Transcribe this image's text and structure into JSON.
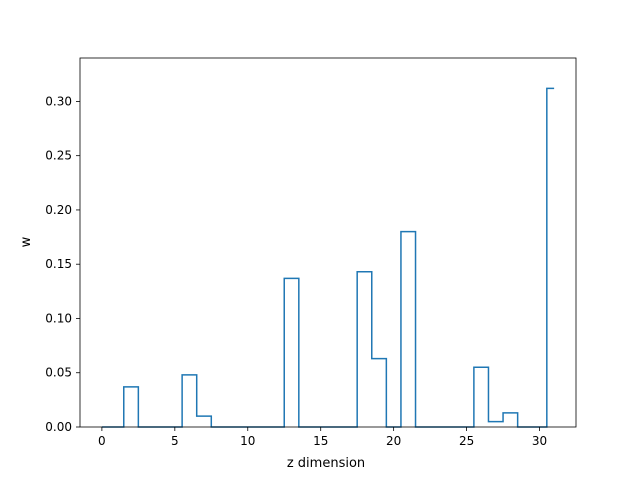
{
  "chart_data": {
    "type": "line",
    "drawstyle": "steps-mid",
    "title": "",
    "xlabel": "z dimension",
    "ylabel": "w",
    "xlim": [
      -1.5,
      32.5
    ],
    "ylim": [
      0.0,
      0.34
    ],
    "xticks": [
      0,
      5,
      10,
      15,
      20,
      25,
      30
    ],
    "xtick_labels": [
      "0",
      "5",
      "10",
      "15",
      "20",
      "25",
      "30"
    ],
    "yticks": [
      0.0,
      0.05,
      0.1,
      0.15,
      0.2,
      0.25,
      0.3
    ],
    "ytick_labels": [
      "0.00",
      "0.05",
      "0.10",
      "0.15",
      "0.20",
      "0.25",
      "0.30"
    ],
    "grid": false,
    "colors": {
      "line": "#1f77b4",
      "axes": "#000000",
      "background": "#ffffff"
    },
    "series": [
      {
        "x": [
          0,
          1,
          2,
          3,
          4,
          5,
          6,
          7,
          8,
          9,
          10,
          11,
          12,
          13,
          14,
          15,
          16,
          17,
          18,
          19,
          20,
          21,
          22,
          23,
          24,
          25,
          26,
          27,
          28,
          29,
          30,
          31
        ],
        "values": [
          0.0,
          0.0,
          0.037,
          0.0,
          0.0,
          0.0,
          0.048,
          0.01,
          0.0,
          0.0,
          0.0,
          0.0,
          0.0,
          0.137,
          0.0,
          0.0,
          0.0,
          0.0,
          0.143,
          0.063,
          0.0,
          0.18,
          0.0,
          0.0,
          0.0,
          0.0,
          0.055,
          0.005,
          0.013,
          0.0,
          0.0,
          0.312
        ]
      }
    ]
  }
}
